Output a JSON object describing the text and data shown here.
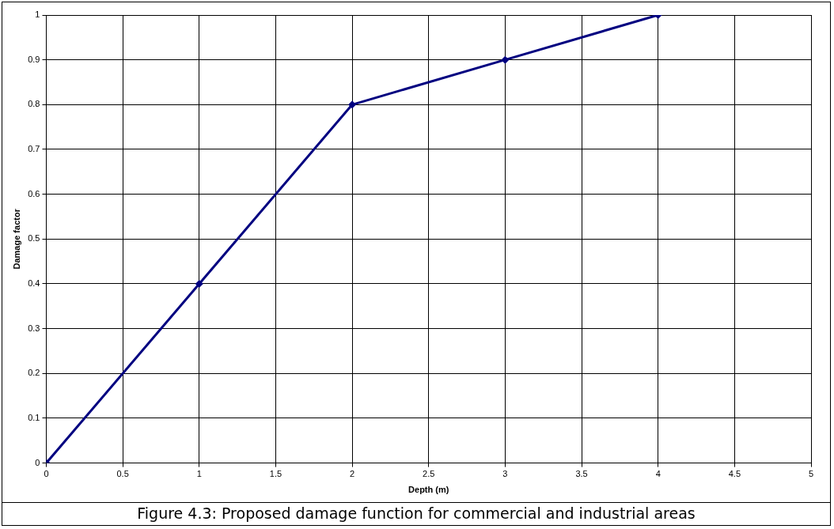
{
  "chart_data": {
    "type": "line",
    "xlabel": "Depth (m)",
    "ylabel": "Damage factor",
    "annotations": [
      "Figure 4.3: Proposed damage function for commercial and industrial areas"
    ],
    "x": [
      0,
      1,
      2,
      3,
      4
    ],
    "series": [
      {
        "color": "#000080",
        "values": [
          0,
          0.4,
          0.8,
          0.9,
          1
        ]
      }
    ],
    "xlim": [
      0,
      5
    ],
    "xticks": [
      0,
      0.5,
      1,
      1.5,
      2,
      2.5,
      3,
      3.5,
      4,
      4.5,
      5
    ],
    "ylim": [
      0,
      1
    ],
    "yticks": [
      0,
      0.1,
      0.2,
      0.3,
      0.4,
      0.5,
      0.6,
      0.7,
      0.8,
      0.9,
      1
    ],
    "grid": true,
    "legend": false,
    "marker": "diamond",
    "line_style": "solid"
  }
}
